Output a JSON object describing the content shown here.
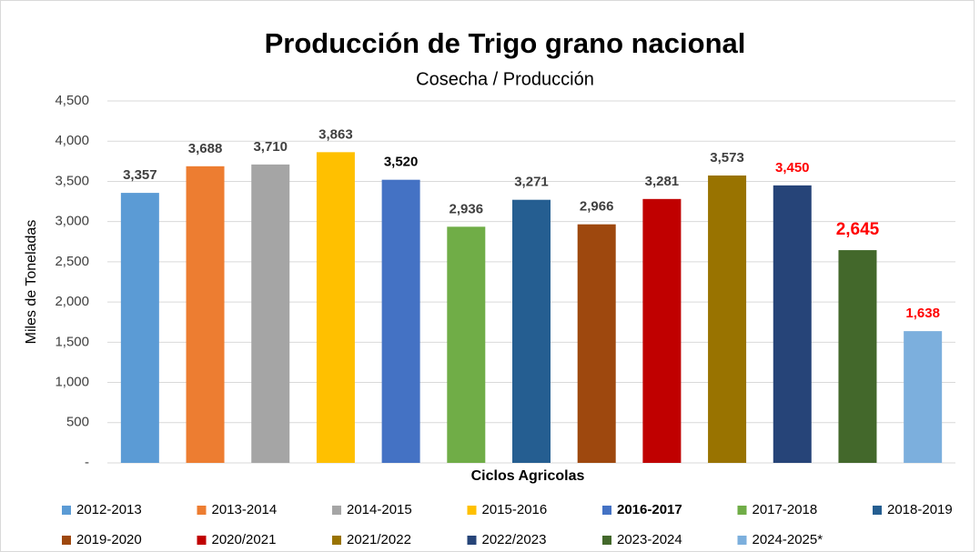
{
  "chart_data": {
    "type": "bar",
    "title": "Producción de Trigo grano nacional",
    "subtitle": "Cosecha / Producción",
    "y_label": "Miles de Toneladas",
    "x_label": "Ciclos Agricolas",
    "categories": [
      "2012-2013",
      "2013-2014",
      "2014-2015",
      "2015-2016",
      "2016-2017",
      "2017-2018",
      "2018-2019",
      "2019-2020",
      "2020/2021",
      "2021/2022",
      "2022/2023",
      "2023-2024",
      "2024-2025*"
    ],
    "values": [
      3357,
      3688,
      3710,
      3863,
      3520,
      2936,
      3271,
      2966,
      3281,
      3573,
      3450,
      2645,
      1638
    ],
    "value_labels": [
      "3,357",
      "3,688",
      "3,710",
      "3,863",
      "3,520",
      "2,936",
      "3,271",
      "2,966",
      "3,281",
      "3,573",
      "3,450",
      "2,645",
      "1,638"
    ],
    "colors": [
      "#5b9bd5",
      "#ed7d31",
      "#a5a5a5",
      "#ffc000",
      "#4472c4",
      "#70ad47",
      "#255e91",
      "#9e480e",
      "#c00000",
      "#997300",
      "#264478",
      "#43682b",
      "#7cafdd"
    ],
    "value_label_colors": [
      "#404040",
      "#404040",
      "#404040",
      "#404040",
      "#000000",
      "#404040",
      "#404040",
      "#404040",
      "#404040",
      "#404040",
      "#ff0000",
      "#ff0000",
      "#ff0000"
    ],
    "ylim": [
      0,
      4500
    ],
    "yticks": [
      {
        "value": 0,
        "label": "-"
      },
      500,
      {
        "value": 1000,
        "label": "1,000"
      },
      {
        "value": 1500,
        "label": "1,500"
      },
      {
        "value": 2000,
        "label": "2,000"
      },
      {
        "value": 2500,
        "label": "2,500"
      },
      {
        "value": 3000,
        "label": "3,000"
      },
      {
        "value": 3500,
        "label": "3,500"
      },
      {
        "value": 4000,
        "label": "4,000"
      },
      {
        "value": 4500,
        "label": "4,500"
      }
    ],
    "grid": true,
    "legend": "bottom"
  }
}
